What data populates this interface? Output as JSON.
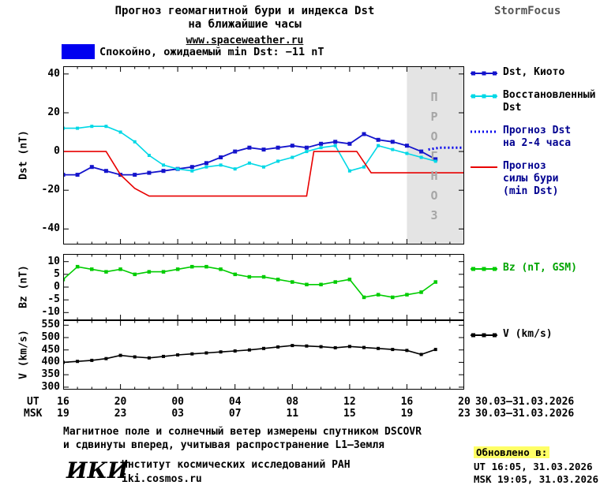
{
  "header": {
    "title1": "Прогноз геомагнитной бури и индекса Dst",
    "title2": "на ближайшие часы",
    "url": "www.spaceweather.ru",
    "brand": "StormFocus"
  },
  "status_bar": {
    "label": "Спокойно, ожидаемый min Dst: −11 nT",
    "swatch_color": "#0000f0"
  },
  "forecast_label": "ПРОГНОЗ",
  "chart_data": [
    {
      "type": "line",
      "ylabel": "Dst (nT)",
      "xlim": [
        16,
        44
      ],
      "ylim": [
        -48,
        44
      ],
      "yticks": [
        40,
        20,
        0,
        -20,
        -40
      ],
      "forecast_band": [
        40,
        44
      ],
      "series": [
        {
          "name": "Dst, Киото",
          "color": "#1414cc",
          "width": 1.8,
          "marker": true,
          "marker_size": 5,
          "x": [
            16,
            17,
            18,
            19,
            20,
            21,
            22,
            23,
            24,
            25,
            26,
            27,
            28,
            29,
            30,
            31,
            32,
            33,
            34,
            35,
            36,
            37,
            38,
            39,
            40,
            41,
            42
          ],
          "y": [
            -12,
            -12,
            -8,
            -10,
            -12,
            -12,
            -11,
            -10,
            -9,
            -8,
            -6,
            -3,
            0,
            2,
            1,
            2,
            3,
            2,
            4,
            5,
            4,
            9,
            6,
            5,
            3,
            0,
            -4
          ]
        },
        {
          "name": "Восстановленный Dst",
          "color": "#00d8e6",
          "width": 1.6,
          "marker": true,
          "marker_size": 4,
          "x": [
            16,
            17,
            18,
            19,
            20,
            21,
            22,
            23,
            24,
            25,
            26,
            27,
            28,
            29,
            30,
            31,
            32,
            33,
            34,
            35,
            36,
            37,
            38,
            39,
            40,
            41,
            42
          ],
          "y": [
            12,
            12,
            13,
            13,
            10,
            5,
            -2,
            -7,
            -9,
            -10,
            -8,
            -7,
            -9,
            -6,
            -8,
            -5,
            -3,
            0,
            2,
            3,
            -10,
            -8,
            3,
            1,
            -1,
            -3,
            -5
          ]
        },
        {
          "name": "Прогноз Dst на 2-4 часа",
          "color": "#0000ee",
          "width": 3,
          "dash": "2 3",
          "x": [
            41.5,
            42.3,
            43.2,
            44
          ],
          "y": [
            1,
            2,
            2,
            2
          ]
        },
        {
          "name": "Прогноз силы бури (min Dst)",
          "color": "#e80000",
          "width": 1.6,
          "x": [
            16,
            19,
            20,
            21,
            22,
            33,
            33.5,
            36.5,
            37.5,
            44
          ],
          "y": [
            0,
            0,
            -12,
            -19,
            -23,
            -23,
            0,
            0,
            -11,
            -11
          ]
        }
      ]
    },
    {
      "type": "line",
      "ylabel": "Bz (nT)",
      "xlim": [
        16,
        44
      ],
      "ylim": [
        -13,
        13
      ],
      "yticks": [
        10,
        5,
        0,
        -5,
        -10
      ],
      "series": [
        {
          "name": "Bz (nT, GSM)",
          "color": "#00cc00",
          "width": 1.6,
          "marker": true,
          "marker_size": 4.5,
          "x": [
            16,
            17,
            18,
            19,
            20,
            21,
            22,
            23,
            24,
            25,
            26,
            27,
            28,
            29,
            30,
            31,
            32,
            33,
            34,
            35,
            36,
            37,
            38,
            39,
            40,
            41,
            42
          ],
          "y": [
            3,
            8,
            7,
            6,
            7,
            5,
            6,
            6,
            7,
            8,
            8,
            7,
            5,
            4,
            4,
            3,
            2,
            1,
            1,
            2,
            3,
            -4,
            -3,
            -4,
            -3,
            -2,
            2
          ]
        }
      ]
    },
    {
      "type": "line",
      "ylabel": "V (km/s)",
      "xlim": [
        16,
        44
      ],
      "ylim": [
        290,
        570
      ],
      "yticks": [
        550,
        500,
        450,
        400,
        350,
        300
      ],
      "series": [
        {
          "name": "V (km/s)",
          "color": "#000000",
          "width": 1.6,
          "marker": true,
          "marker_size": 4,
          "x": [
            16,
            17,
            18,
            19,
            20,
            21,
            22,
            23,
            24,
            25,
            26,
            27,
            28,
            29,
            30,
            31,
            32,
            33,
            34,
            35,
            36,
            37,
            38,
            39,
            40,
            41,
            42
          ],
          "y": [
            400,
            404,
            408,
            415,
            428,
            422,
            418,
            424,
            430,
            434,
            438,
            442,
            446,
            450,
            456,
            462,
            468,
            466,
            463,
            459,
            464,
            460,
            456,
            452,
            448,
            432,
            452
          ]
        }
      ]
    }
  ],
  "xaxis": {
    "hours": [
      16,
      20,
      24,
      28,
      32,
      36,
      40,
      44
    ],
    "ut_label": "UT",
    "msk_label": "MSK",
    "ut": [
      "16",
      "20",
      "00",
      "04",
      "08",
      "12",
      "16",
      "20"
    ],
    "msk": [
      "19",
      "23",
      "03",
      "07",
      "11",
      "15",
      "19",
      "23"
    ],
    "date_range": "30.03–31.03.2026"
  },
  "legends": {
    "panel1": [
      {
        "label_lines": [
          "Dst, Киото"
        ],
        "color": "#1414cc",
        "text_color": "#000000",
        "style": "solid-marker"
      },
      {
        "label_lines": [
          "Восстановленный",
          "Dst"
        ],
        "color": "#00d8e6",
        "text_color": "#000000",
        "style": "solid-marker"
      },
      {
        "label_lines": [
          "Прогноз Dst",
          "на 2-4 часа"
        ],
        "color": "#0000ee",
        "text_color": "#000090",
        "style": "dotted"
      },
      {
        "label_lines": [
          "Прогноз",
          "силы бури",
          "(min Dst)"
        ],
        "color": "#e80000",
        "text_color": "#000090",
        "style": "solid"
      }
    ],
    "panel2": [
      {
        "label_lines": [
          "Bz (nT, GSM)"
        ],
        "color": "#00cc00",
        "text_color": "#00a400",
        "style": "solid-marker"
      }
    ],
    "panel3": [
      {
        "label_lines": [
          "V (km/s)"
        ],
        "color": "#000000",
        "text_color": "#000000",
        "style": "solid-marker"
      }
    ]
  },
  "footer": {
    "line1": "Магнитное поле и солнечный ветер измерены спутником DSCOVR",
    "line2": "и сдвинуты вперед, учитывая распространение L1–Земля",
    "updated_label": "Обновлено в:",
    "updated_ut": "UT  16:05, 31.03.2026",
    "updated_msk": "MSK 19:05, 31.03.2026",
    "logo": "ИКИ",
    "institute": "Институт космических исследований РАН",
    "site": "iki.cosmos.ru"
  }
}
